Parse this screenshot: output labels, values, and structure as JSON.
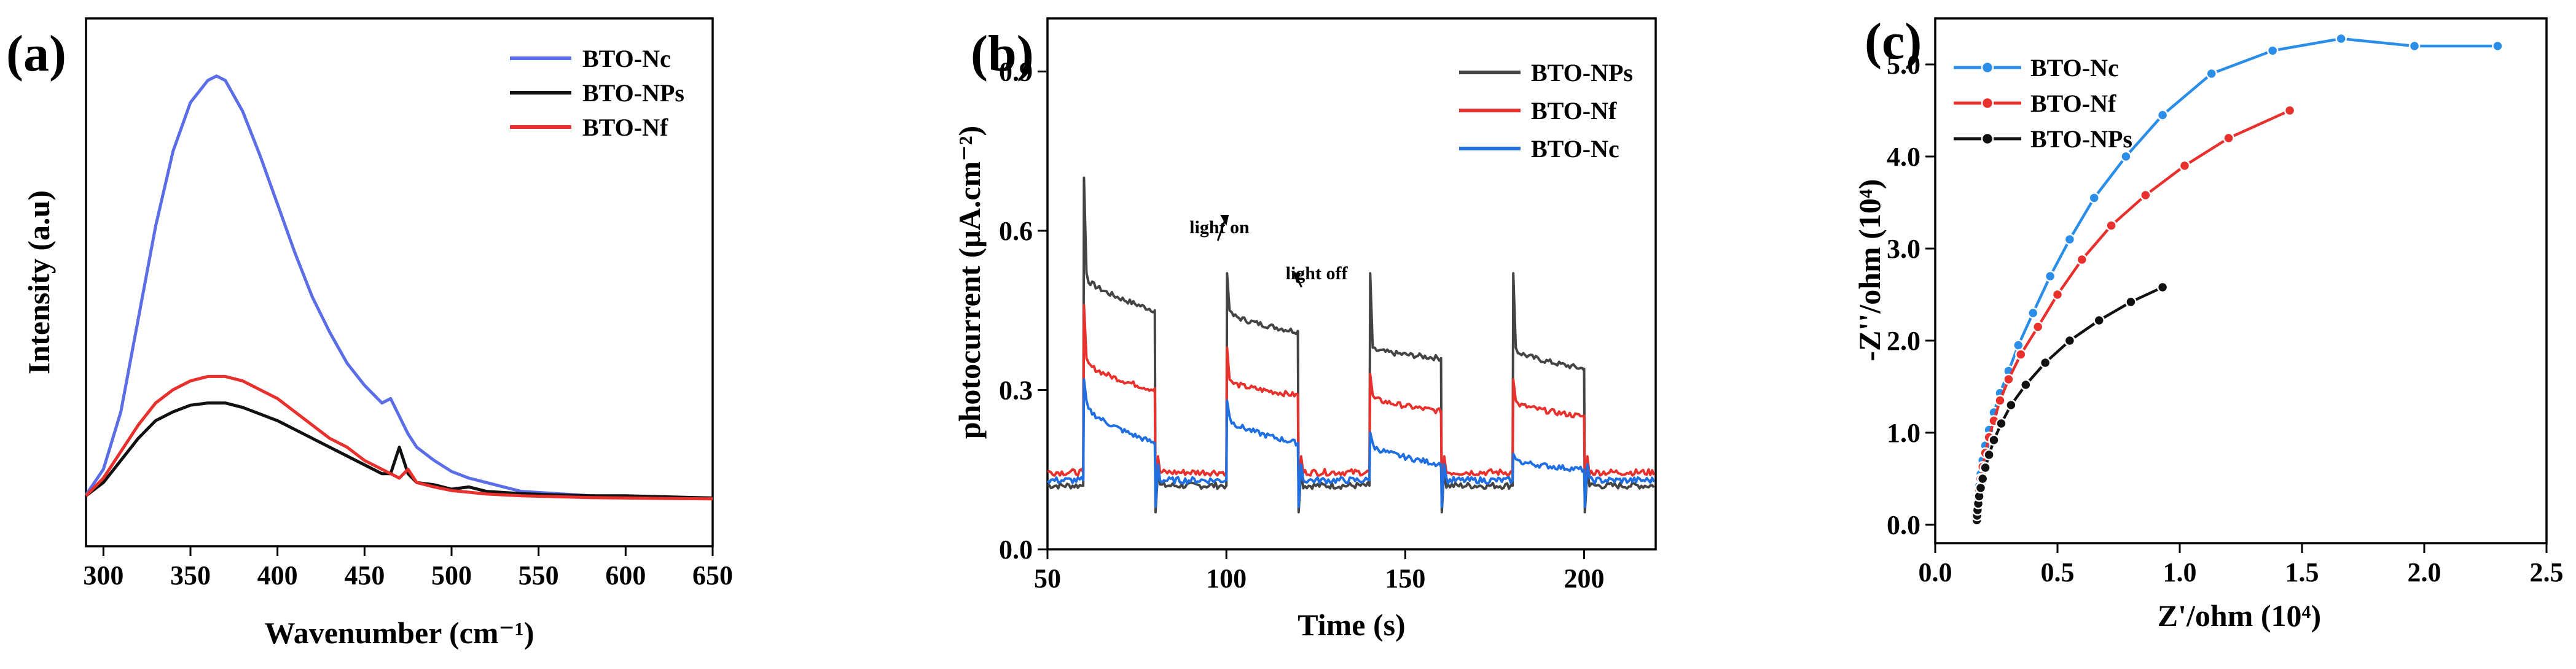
{
  "chart_data": [
    {
      "type": "line",
      "panel_label": "(a)",
      "xlabel": "Wavenumber (cm⁻¹)",
      "ylabel": "Intensity (a.u)",
      "xlim": [
        290,
        650
      ],
      "ylim": [
        0,
        1.0
      ],
      "xticks": [
        300,
        350,
        400,
        450,
        500,
        550,
        600,
        650
      ],
      "xtick_labels": [
        "300",
        "350",
        "400",
        "450",
        "500",
        "550",
        "600",
        "650"
      ],
      "yticks_hidden": true,
      "legend_position": "top-right",
      "series": [
        {
          "name": "BTO-Nc",
          "color": "#5b6ee8",
          "x": [
            290,
            300,
            310,
            320,
            330,
            340,
            350,
            360,
            365,
            370,
            380,
            390,
            400,
            410,
            420,
            430,
            440,
            450,
            460,
            465,
            470,
            475,
            480,
            490,
            500,
            510,
            520,
            530,
            540,
            560,
            580,
            600,
            620,
            650
          ],
          "y": [
            0.012,
            0.07,
            0.2,
            0.41,
            0.62,
            0.79,
            0.9,
            0.95,
            0.96,
            0.95,
            0.88,
            0.78,
            0.67,
            0.56,
            0.46,
            0.38,
            0.31,
            0.26,
            0.22,
            0.23,
            0.19,
            0.15,
            0.12,
            0.09,
            0.065,
            0.05,
            0.04,
            0.03,
            0.02,
            0.015,
            0.01,
            0.008,
            0.006,
            0.005
          ]
        },
        {
          "name": "BTO-NPs",
          "color": "#111111",
          "x": [
            290,
            300,
            310,
            320,
            330,
            340,
            350,
            360,
            370,
            380,
            390,
            400,
            410,
            420,
            430,
            440,
            450,
            460,
            465,
            470,
            475,
            480,
            490,
            500,
            510,
            520,
            540,
            560,
            580,
            600,
            620,
            650
          ],
          "y": [
            0.01,
            0.04,
            0.09,
            0.14,
            0.18,
            0.2,
            0.215,
            0.22,
            0.22,
            0.21,
            0.195,
            0.18,
            0.16,
            0.14,
            0.12,
            0.1,
            0.08,
            0.06,
            0.06,
            0.12,
            0.06,
            0.04,
            0.035,
            0.025,
            0.03,
            0.02,
            0.015,
            0.012,
            0.01,
            0.01,
            0.008,
            0.005
          ]
        },
        {
          "name": "BTO-Nf",
          "color": "#e8302c",
          "x": [
            290,
            300,
            310,
            320,
            330,
            340,
            350,
            360,
            370,
            380,
            390,
            400,
            410,
            420,
            430,
            440,
            450,
            460,
            470,
            475,
            480,
            490,
            500,
            510,
            520,
            540,
            560,
            580,
            600,
            620,
            650
          ],
          "y": [
            0.01,
            0.05,
            0.11,
            0.17,
            0.22,
            0.25,
            0.27,
            0.28,
            0.28,
            0.27,
            0.25,
            0.23,
            0.2,
            0.17,
            0.14,
            0.12,
            0.09,
            0.07,
            0.05,
            0.07,
            0.04,
            0.03,
            0.022,
            0.018,
            0.014,
            0.01,
            0.008,
            0.006,
            0.005,
            0.004,
            0.003
          ]
        }
      ]
    },
    {
      "type": "line",
      "panel_label": "(b)",
      "xlabel": "Time (s)",
      "ylabel": "photocurrent (μA.cm⁻²)",
      "xlim": [
        50,
        220
      ],
      "ylim": [
        0.0,
        1.0
      ],
      "xticks": [
        50,
        100,
        150,
        200
      ],
      "xtick_labels": [
        "50",
        "100",
        "150",
        "200"
      ],
      "yticks": [
        0.0,
        0.3,
        0.6,
        0.9
      ],
      "ytick_labels": [
        "0.0",
        "0.3",
        "0.6",
        "0.9"
      ],
      "legend_position": "top-right",
      "annotations": [
        {
          "text": "light on",
          "x": 100,
          "y": 0.6
        },
        {
          "text": "light off",
          "x": 120,
          "y": 0.49
        }
      ],
      "light_on_times": [
        60,
        100,
        140,
        180
      ],
      "light_off_times": [
        80,
        120,
        160,
        200
      ],
      "series": [
        {
          "name": "BTO-NPs",
          "color": "#444444",
          "dark_level": 0.12,
          "spike": [
            0.7,
            0.52,
            0.52,
            0.52
          ],
          "plateau_end": [
            0.45,
            0.41,
            0.36,
            0.34
          ],
          "plateau_start": [
            0.52,
            0.45,
            0.38,
            0.38
          ]
        },
        {
          "name": "BTO-Nf",
          "color": "#e8302c",
          "dark_level": 0.145,
          "spike": [
            0.46,
            0.38,
            0.33,
            0.32
          ],
          "plateau_end": [
            0.3,
            0.29,
            0.26,
            0.25
          ],
          "plateau_start": [
            0.36,
            0.32,
            0.29,
            0.28
          ]
        },
        {
          "name": "BTO-Nc",
          "color": "#1f6fe0",
          "dark_level": 0.13,
          "spike": [
            0.32,
            0.28,
            0.22,
            0.18
          ],
          "plateau_end": [
            0.2,
            0.2,
            0.16,
            0.15
          ],
          "plateau_start": [
            0.28,
            0.25,
            0.2,
            0.17
          ]
        }
      ]
    },
    {
      "type": "scatter",
      "panel_label": "(c)",
      "xlabel": "Z'/ohm (10⁴)",
      "ylabel": "-Z''/ohm (10⁴)",
      "xlim": [
        0.0,
        2.5
      ],
      "ylim": [
        -0.2,
        5.5
      ],
      "xticks": [
        0.0,
        0.5,
        1.0,
        1.5,
        2.0,
        2.5
      ],
      "xtick_labels": [
        "0.0",
        "0.5",
        "1.0",
        "1.5",
        "2.0",
        "2.5"
      ],
      "yticks": [
        0.0,
        1.0,
        2.0,
        3.0,
        4.0,
        5.0
      ],
      "ytick_labels": [
        "0.0",
        "1.0",
        "2.0",
        "3.0",
        "4.0",
        "5.0"
      ],
      "legend_position": "top-left",
      "series": [
        {
          "name": "BTO-Nc",
          "color": "#2a8de8",
          "x": [
            0.17,
            0.171,
            0.173,
            0.176,
            0.18,
            0.186,
            0.194,
            0.205,
            0.22,
            0.24,
            0.265,
            0.3,
            0.34,
            0.4,
            0.47,
            0.55,
            0.65,
            0.78,
            0.93,
            1.13,
            1.38,
            1.66,
            1.96,
            2.3
          ],
          "y": [
            0.06,
            0.12,
            0.2,
            0.3,
            0.42,
            0.55,
            0.7,
            0.86,
            1.03,
            1.22,
            1.43,
            1.67,
            1.95,
            2.3,
            2.7,
            3.1,
            3.55,
            4.0,
            4.45,
            4.9,
            5.15,
            5.28,
            5.2,
            5.2
          ]
        },
        {
          "name": "BTO-Nf",
          "color": "#e8302c",
          "x": [
            0.17,
            0.171,
            0.173,
            0.176,
            0.18,
            0.186,
            0.194,
            0.205,
            0.22,
            0.24,
            0.265,
            0.3,
            0.35,
            0.42,
            0.5,
            0.6,
            0.72,
            0.86,
            1.02,
            1.2,
            1.45
          ],
          "y": [
            0.06,
            0.12,
            0.19,
            0.28,
            0.38,
            0.5,
            0.63,
            0.78,
            0.95,
            1.13,
            1.35,
            1.58,
            1.85,
            2.15,
            2.5,
            2.88,
            3.25,
            3.58,
            3.9,
            4.2,
            4.5
          ]
        },
        {
          "name": "BTO-NPs",
          "color": "#111111",
          "x": [
            0.17,
            0.171,
            0.173,
            0.176,
            0.18,
            0.186,
            0.194,
            0.205,
            0.22,
            0.24,
            0.27,
            0.31,
            0.37,
            0.45,
            0.55,
            0.67,
            0.8,
            0.93
          ],
          "y": [
            0.05,
            0.1,
            0.16,
            0.23,
            0.31,
            0.4,
            0.5,
            0.62,
            0.76,
            0.92,
            1.1,
            1.3,
            1.52,
            1.76,
            2.0,
            2.22,
            2.42,
            2.58
          ]
        }
      ]
    }
  ]
}
